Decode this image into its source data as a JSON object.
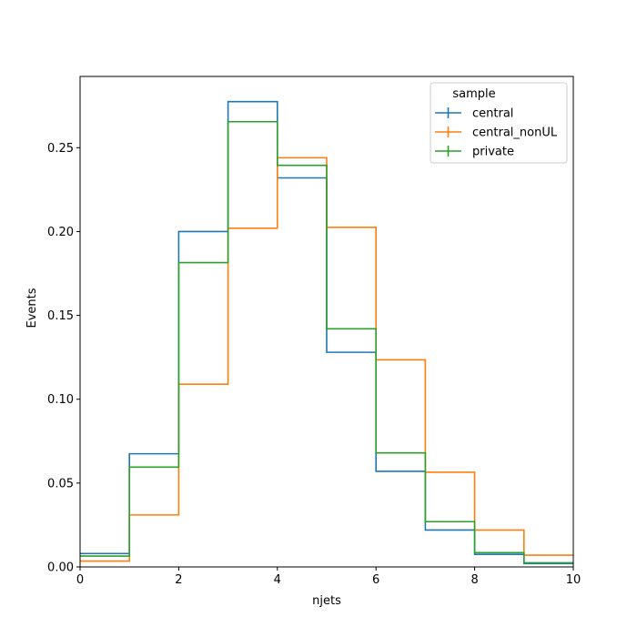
{
  "chart_data": {
    "type": "histogram-step",
    "title": "",
    "xlabel": "njets",
    "ylabel": "Events",
    "xlim": [
      0,
      10
    ],
    "ylim": [
      0,
      0.2925
    ],
    "xticks": [
      0,
      2,
      4,
      6,
      8,
      10
    ],
    "yticks": [
      0.0,
      0.05,
      0.1,
      0.15,
      0.2,
      0.25
    ],
    "ytick_labels": [
      "0.00",
      "0.05",
      "0.10",
      "0.15",
      "0.20",
      "0.25"
    ],
    "bin_edges": [
      0,
      1,
      2,
      3,
      4,
      5,
      6,
      7,
      8,
      9,
      10
    ],
    "legend": {
      "title": "sample",
      "placement": "top-right"
    },
    "grid": false,
    "series": [
      {
        "name": "central",
        "color": "#1f77b4",
        "values": [
          0.008,
          0.0675,
          0.2,
          0.2775,
          0.232,
          0.128,
          0.057,
          0.022,
          0.0075,
          0.002
        ]
      },
      {
        "name": "central_nonUL",
        "color": "#ff7f0e",
        "values": [
          0.0035,
          0.031,
          0.109,
          0.202,
          0.244,
          0.2025,
          0.1235,
          0.0565,
          0.022,
          0.007
        ]
      },
      {
        "name": "private",
        "color": "#2ca02c",
        "values": [
          0.0065,
          0.0595,
          0.1815,
          0.2655,
          0.2395,
          0.142,
          0.068,
          0.027,
          0.0085,
          0.0025
        ]
      }
    ]
  }
}
